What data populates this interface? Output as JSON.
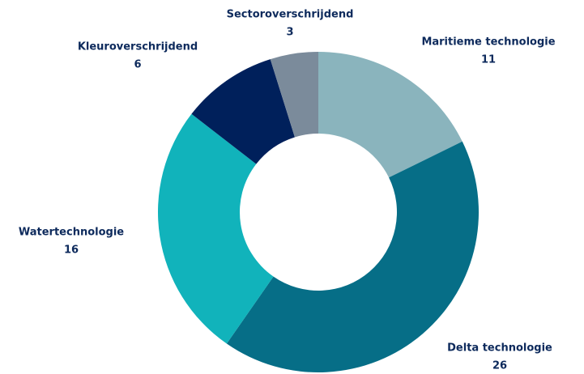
{
  "chart_data": {
    "type": "donut",
    "categories": [
      "Maritieme technologie",
      "Delta technologie",
      "Watertechnologie",
      "Kleuroverschrijdend",
      "Sectoroverschrijdend"
    ],
    "values": [
      11,
      26,
      16,
      6,
      3
    ],
    "colors": [
      "#8ab4bd",
      "#066e87",
      "#11b3bb",
      "#00205b",
      "#7b8b9b"
    ]
  }
}
